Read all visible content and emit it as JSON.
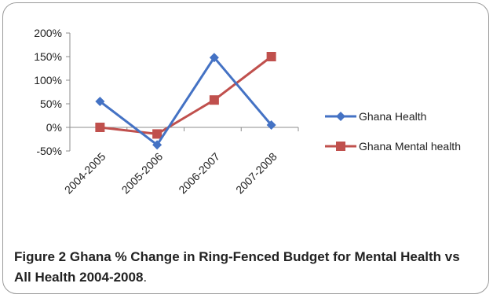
{
  "chart_data": {
    "type": "line",
    "categories": [
      "2004-2005",
      "2005-2006",
      "2006-2007",
      "2007-2008"
    ],
    "y_tick_labels": [
      "200%",
      "150%",
      "100%",
      "50%",
      "0%",
      "-50%"
    ],
    "y_ticks": [
      200,
      150,
      100,
      50,
      0,
      -50
    ],
    "ylim": [
      -50,
      200
    ],
    "grid": false,
    "legend_position": "right",
    "series": [
      {
        "name": "Ghana Health",
        "values": [
          55,
          -37,
          148,
          5
        ],
        "color": "#4472c4",
        "marker": "diamond"
      },
      {
        "name": "Ghana Mental health",
        "values": [
          0,
          -14,
          58,
          150
        ],
        "color": "#c0504d",
        "marker": "square"
      }
    ]
  },
  "caption": {
    "figure_label": "Figure 2",
    "text": " Ghana % Change in Ring-Fenced Budget for Mental Health vs All Health 2004-2008",
    "end": "."
  }
}
